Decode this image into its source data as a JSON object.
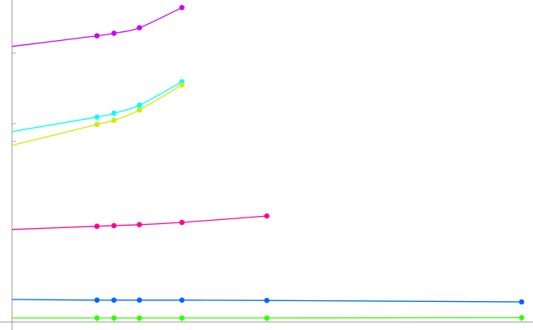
{
  "chart_data": {
    "type": "line",
    "title": "",
    "xlabel": "",
    "ylabel": "",
    "grid": false,
    "legend": "none",
    "xlim": [
      0,
      6.2
    ],
    "ylim": [
      0,
      100
    ],
    "x": [
      1,
      1.2,
      1.5,
      2,
      3,
      6
    ],
    "series": [
      {
        "color": "#cc00ff",
        "start_value": 85.8,
        "values": [
          89.1,
          89.9,
          91.6,
          97.9,
          null,
          null
        ]
      },
      {
        "color": "#00ffff",
        "start_value": 59.3,
        "values": [
          63.8,
          65.0,
          67.5,
          74.8,
          null,
          null
        ]
      },
      {
        "color": "#ccee00",
        "start_value": 55.0,
        "values": [
          61.5,
          62.8,
          66.0,
          73.8,
          null,
          null
        ]
      },
      {
        "color": "#ff0099",
        "start_value": 28.8,
        "values": [
          29.8,
          30.0,
          30.3,
          31.0,
          33.0,
          null
        ]
      },
      {
        "color": "#0066ff",
        "start_value": 7.0,
        "values": [
          6.8,
          6.8,
          6.8,
          6.8,
          6.7,
          6.25
        ]
      },
      {
        "color": "#33ff00",
        "start_value": 1.25,
        "values": [
          1.25,
          1.25,
          1.25,
          1.25,
          1.25,
          1.35
        ]
      }
    ]
  }
}
